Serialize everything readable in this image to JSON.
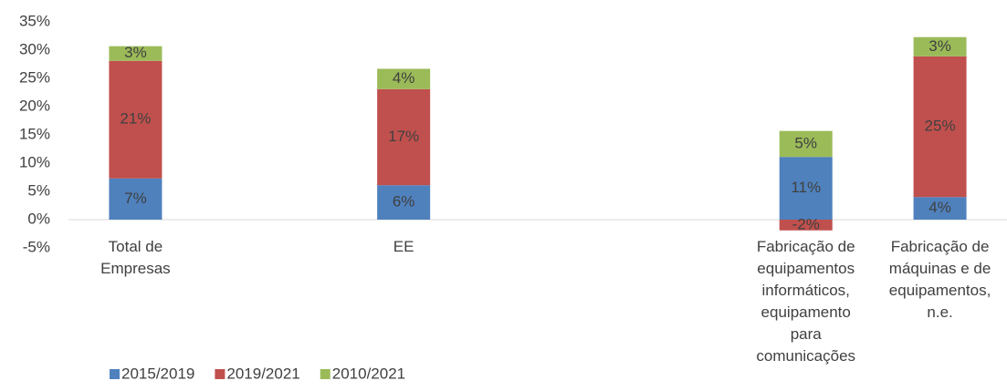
{
  "chart_data": {
    "type": "stacked_bar",
    "categories": [
      "Total de Empresas",
      null,
      "EE",
      null,
      null,
      "Fabricação de equipamentos informáticos, equipamento para comunicações",
      "Fabricação de máquinas e de equipamentos, n.e."
    ],
    "series": [
      {
        "name": "2015/2019",
        "color": "#4f81bd",
        "values": [
          7.3,
          null,
          6.1,
          null,
          null,
          11.1,
          4.0
        ],
        "value_labels": [
          "7%",
          null,
          "6%",
          null,
          null,
          "11%",
          "4%"
        ]
      },
      {
        "name": "2019/2021",
        "color": "#c0504d",
        "values": [
          20.8,
          null,
          17.0,
          null,
          null,
          -1.9,
          24.9
        ],
        "value_labels": [
          "21%",
          null,
          "17%",
          null,
          null,
          "-2%",
          "25%"
        ]
      },
      {
        "name": "2010/2021",
        "color": "#9bbb59",
        "values": [
          2.6,
          null,
          3.6,
          null,
          null,
          4.6,
          3.4
        ],
        "value_labels": [
          "3%",
          null,
          "4%",
          null,
          null,
          "5%",
          "3%"
        ]
      }
    ],
    "ylim": [
      -5,
      35
    ],
    "yticks": [
      {
        "value": -5,
        "label": "-5%"
      },
      {
        "value": 0,
        "label": "0%"
      },
      {
        "value": 5,
        "label": "5%"
      },
      {
        "value": 10,
        "label": "10%"
      },
      {
        "value": 15,
        "label": "15%"
      },
      {
        "value": 20,
        "label": "20%"
      },
      {
        "value": 25,
        "label": "25%"
      },
      {
        "value": 30,
        "label": "30%"
      },
      {
        "value": 35,
        "label": "35%"
      }
    ],
    "legend": "bottom-left"
  }
}
